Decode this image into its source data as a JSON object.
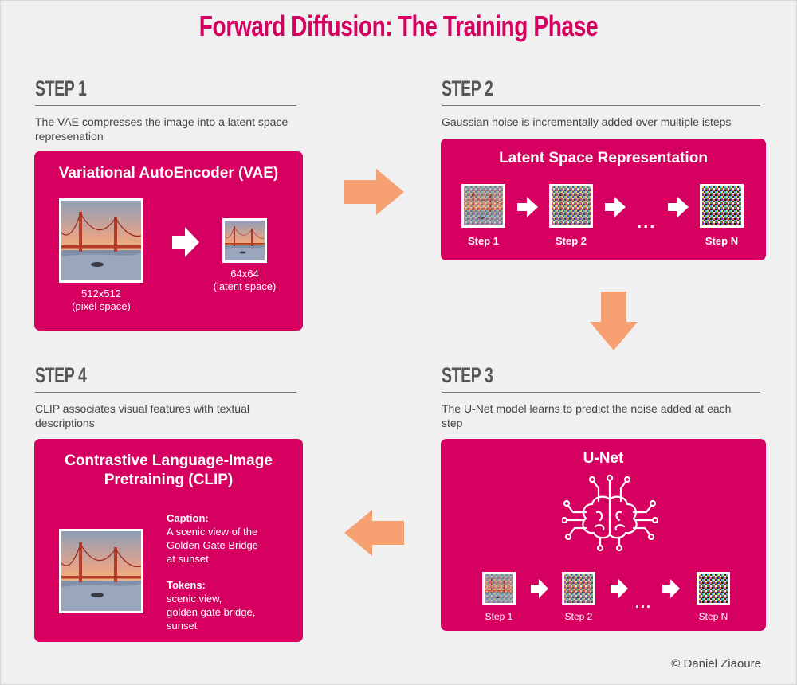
{
  "title": "Forward Diffusion: The Training Phase",
  "steps": [
    {
      "heading": "STEP 1",
      "description": "The VAE compresses the image into a latent space represenation",
      "card_title": "Variational AutoEncoder  (VAE)",
      "image_big_label": [
        "512x512",
        "(pixel space)"
      ],
      "image_small_label": [
        "64x64",
        "(latent space)"
      ]
    },
    {
      "heading": "STEP 2",
      "description": "Gaussian noise is incrementally added over multiple isteps",
      "card_title": "Latent Space Representation",
      "frames": [
        "Step 1",
        "Step 2",
        "Step N"
      ],
      "ellipsis": "..."
    },
    {
      "heading": "STEP 3",
      "description": "The U-Net model learns to predict the noise added at each step",
      "card_title": "U-Net",
      "frames": [
        "Step 1",
        "Step 2",
        "Step N"
      ],
      "ellipsis": "..."
    },
    {
      "heading": "STEP 4",
      "description": "CLIP associates visual features with textual descriptions",
      "card_title": "Contrastive Language-Image Pretraining (CLIP)",
      "caption_heading": "Caption:",
      "caption_lines": [
        "A scenic view of the",
        "Golden Gate Bridge",
        "at sunset"
      ],
      "tokens_heading": "Tokens:",
      "tokens_lines": [
        "scenic view,",
        "golden gate bridge,",
        "sunset"
      ]
    }
  ],
  "copyright": "© Daniel Ziaoure",
  "colors": {
    "accent": "#d5005f",
    "arrow": "#f7a072",
    "background": "#f0f0f0"
  },
  "icons": [
    "right-arrow-icon",
    "down-arrow-icon",
    "left-arrow-icon",
    "brain-circuit-icon"
  ]
}
